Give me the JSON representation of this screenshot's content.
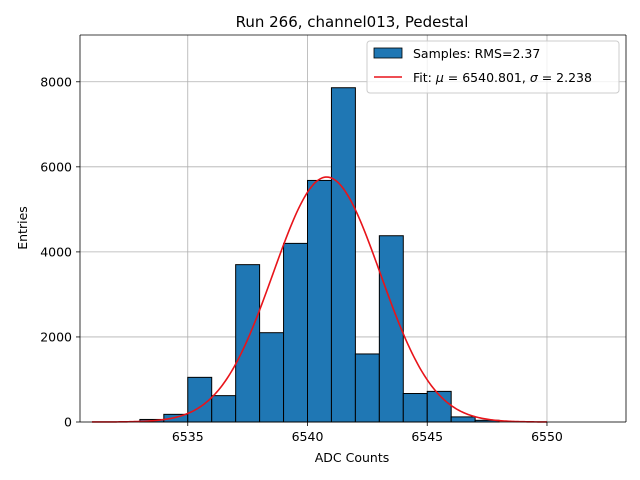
{
  "chart_data": {
    "type": "bar",
    "title": "Run 266, channel013, Pedestal",
    "xlabel": "ADC Counts",
    "ylabel": "Entries",
    "xlim": [
      6530.5,
      6553.3
    ],
    "ylim": [
      0,
      9100
    ],
    "xticks": [
      6535,
      6540,
      6545,
      6550
    ],
    "yticks": [
      0,
      2000,
      4000,
      6000,
      8000
    ],
    "grid": true,
    "legend_position": "top-right",
    "histogram": {
      "name": "Samples: RMS=2.37",
      "color": "#1f77b4",
      "edge_color": "#000000",
      "bins": [
        {
          "x0": 6533.0,
          "x1": 6534.0,
          "count": 60
        },
        {
          "x0": 6534.0,
          "x1": 6535.0,
          "count": 180
        },
        {
          "x0": 6535.0,
          "x1": 6536.0,
          "count": 1050
        },
        {
          "x0": 6536.0,
          "x1": 6537.0,
          "count": 620
        },
        {
          "x0": 6537.0,
          "x1": 6538.0,
          "count": 3700
        },
        {
          "x0": 6538.0,
          "x1": 6539.0,
          "count": 2100
        },
        {
          "x0": 6539.0,
          "x1": 6540.0,
          "count": 4200
        },
        {
          "x0": 6540.0,
          "x1": 6541.0,
          "count": 5680
        },
        {
          "x0": 6541.0,
          "x1": 6542.0,
          "count": 7860
        },
        {
          "x0": 6542.0,
          "x1": 6543.0,
          "count": 1600
        },
        {
          "x0": 6543.0,
          "x1": 6544.0,
          "count": 4380
        },
        {
          "x0": 6544.0,
          "x1": 6545.0,
          "count": 670
        },
        {
          "x0": 6545.0,
          "x1": 6546.0,
          "count": 720
        },
        {
          "x0": 6546.0,
          "x1": 6547.0,
          "count": 120
        },
        {
          "x0": 6547.0,
          "x1": 6548.0,
          "count": 40
        }
      ]
    },
    "fit": {
      "name_prefix": "Fit: ",
      "mu_symbol": "μ",
      "mu_text": " = 6540.801, ",
      "sigma_symbol": "σ",
      "sigma_text": " = 2.238",
      "mu": 6540.801,
      "sigma": 2.238,
      "amplitude": 5760,
      "x_range": [
        6531.0,
        6550.0
      ],
      "color": "#e8141a"
    }
  }
}
